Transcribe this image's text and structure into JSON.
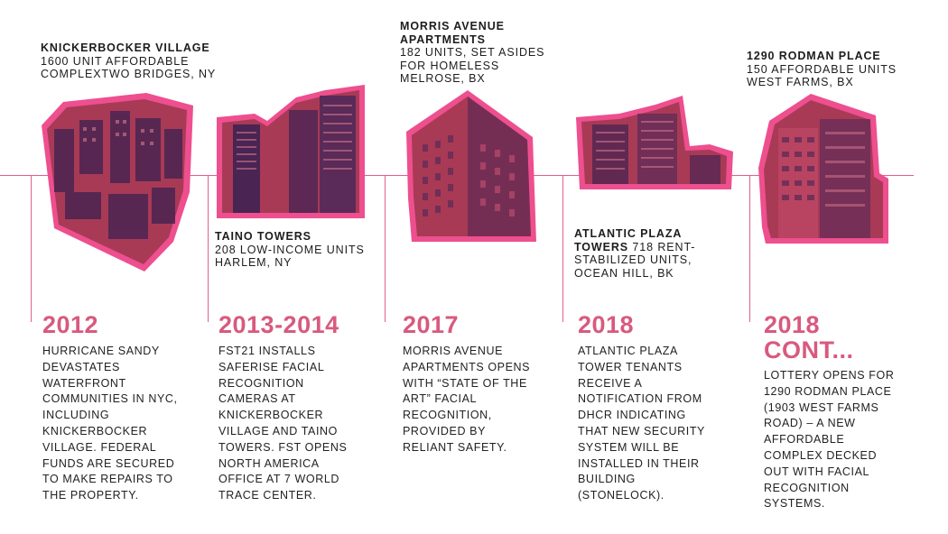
{
  "entries": [
    {
      "building_name": "KNICKERBOCKER VILLAGE",
      "building_details": [
        "1600 UNIT AFFORDABLE",
        "COMPLEXTWO BRIDGES, NY"
      ],
      "year": "2012",
      "description": "HURRICANE SANDY DEVASTATES WATERFRONT COMMUNITIES IN NYC, INCLUDING KNICKERBOCKER VILLAGE. FEDERAL FUNDS ARE SECURED TO MAKE REPAIRS TO THE PROPERTY."
    },
    {
      "building_name": "TAINO TOWERS",
      "building_details": [
        "208 LOW-INCOME UNITS",
        "HARLEM, NY"
      ],
      "year": "2013-2014",
      "description": "FST21 INSTALLS SAFERISE FACIAL RECOGNITION CAMERAS AT KNICKERBOCKER VILLAGE AND TAINO TOWERS. FST OPENS NORTH AMERICA OFFICE AT 7 WORLD TRACE CENTER."
    },
    {
      "building_name": "MORRIS AVENUE APARTMENTS",
      "building_details": [
        "182 UNITS, SET ASIDES",
        "FOR HOMELESS",
        "MELROSE, BX"
      ],
      "year": "2017",
      "description": "MORRIS AVENUE APARTMENTS OPENS WITH “STATE OF THE ART” FACIAL RECOGNITION, PROVIDED BY RELIANT SAFETY."
    },
    {
      "building_name": "ATLANTIC PLAZA TOWERS",
      "building_details_inline": "718 RENT-STABILIZED UNITS, OCEAN HILL, BK",
      "year": "2018",
      "description": "ATLANTIC PLAZA TOWER TENANTS RECEIVE A NOTIFICATION FROM DHCR INDICATING THAT NEW SECURITY SYSTEM WILL BE INSTALLED IN THEIR BUILDING (STONELOCK)."
    },
    {
      "building_name": "1290 RODMAN PLACE",
      "building_details": [
        "150 AFFORDABLE UNITS",
        "WEST FARMS, BX"
      ],
      "year": "2018 CONT...",
      "description": "LOTTERY OPENS FOR 1290 RODMAN PLACE (1903 WEST FARMS ROAD) – A NEW AFFORDABLE COMPLEX DECKED OUT WITH FACIAL RECOGNITION SYSTEMS."
    }
  ],
  "colors": {
    "accent": "#d85a7e",
    "line": "#e0608a",
    "photo_border": "#ee4f8e",
    "photo_fill": "#a83a56",
    "photo_dark": "#4a2452"
  }
}
